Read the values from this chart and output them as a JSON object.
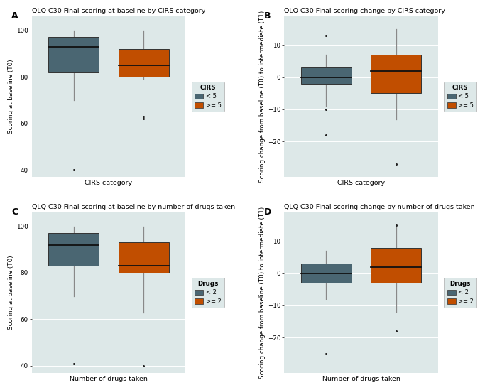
{
  "bg_color": "#dde8e8",
  "dark_color": "#4a6672",
  "orange_color": "#c14e00",
  "panel_A": {
    "title": "QLQ C30 Final scoring at baseline by CIRS category",
    "xlabel": "CIRS category",
    "ylabel": "Scoring at baseline (T0)",
    "ylim": [
      37,
      106
    ],
    "yticks": [
      40,
      60,
      80,
      100
    ],
    "box1": {
      "q1": 82,
      "median": 93,
      "q3": 97,
      "whisker_low": 70,
      "whisker_high": 100,
      "outliers": [
        40
      ]
    },
    "box2": {
      "q1": 80,
      "median": 85,
      "q3": 92,
      "whisker_low": 79,
      "whisker_high": 100,
      "outliers": [
        62,
        63
      ]
    },
    "legend_title": "CIRS",
    "legend_labels": [
      "< 5",
      ">= 5"
    ]
  },
  "panel_B": {
    "title": "QLQ C30 Final scoring change by CIRS category",
    "xlabel": "CIRS category",
    "ylabel": "Scoring change from baseline (T0) to intermediate (T1)",
    "ylim": [
      -31,
      19
    ],
    "yticks": [
      -20,
      -10,
      0,
      10
    ],
    "box1": {
      "q1": -2,
      "median": 0,
      "q3": 3,
      "whisker_low": -9,
      "whisker_high": 7,
      "outliers": [
        13,
        -10,
        -18
      ]
    },
    "box2": {
      "q1": -5,
      "median": 2,
      "q3": 7,
      "whisker_low": -13,
      "whisker_high": 15,
      "outliers": [
        -27
      ]
    },
    "legend_title": "CIRS",
    "legend_labels": [
      "< 5",
      ">= 5"
    ]
  },
  "panel_C": {
    "title": "QLQ C30 Final scoring at baseline by number of drugs taken",
    "xlabel": "Number of drugs taken",
    "ylabel": "Scoring at baseline (T0)",
    "ylim": [
      37,
      106
    ],
    "yticks": [
      40,
      60,
      80,
      100
    ],
    "box1": {
      "q1": 83,
      "median": 92,
      "q3": 97,
      "whisker_low": 70,
      "whisker_high": 100,
      "outliers": [
        41
      ]
    },
    "box2": {
      "q1": 80,
      "median": 83,
      "q3": 93,
      "whisker_low": 63,
      "whisker_high": 100,
      "outliers": [
        40
      ]
    },
    "legend_title": "Drugs",
    "legend_labels": [
      "< 2",
      ">= 2"
    ]
  },
  "panel_D": {
    "title": "QLQ C30 Final scoring change by number of drugs taken",
    "xlabel": "Number of drugs taken",
    "ylabel": "Scoring change from baseline (T0) to intermediate (T1)",
    "ylim": [
      -31,
      19
    ],
    "yticks": [
      -20,
      -10,
      0,
      10
    ],
    "box1": {
      "q1": -3,
      "median": 0,
      "q3": 3,
      "whisker_low": -8,
      "whisker_high": 7,
      "outliers": [
        -25
      ]
    },
    "box2": {
      "q1": -3,
      "median": 2,
      "q3": 8,
      "whisker_low": -12,
      "whisker_high": 15,
      "outliers": [
        15,
        -18
      ]
    },
    "legend_title": "Drugs",
    "legend_labels": [
      "< 2",
      ">= 2"
    ]
  }
}
